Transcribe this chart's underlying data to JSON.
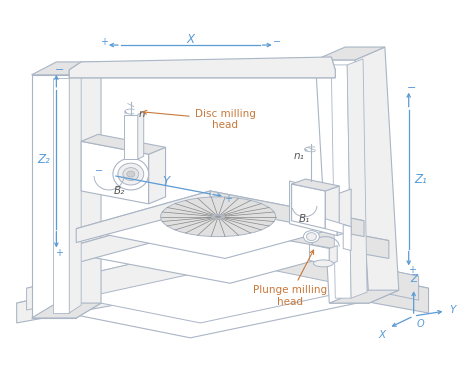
{
  "bg_color": "#ffffff",
  "line_color": "#aab5c5",
  "face_light": "#ffffff",
  "face_mid": "#f0f0f0",
  "face_dark": "#e4e4e4",
  "blue_color": "#5b9bd5",
  "orange_color": "#c8783a",
  "dark_color": "#555555",
  "labels": {
    "Z1": "Z₁",
    "Z2": "Z₂",
    "B1": "B₁",
    "B2": "B₂",
    "n1": "n₁",
    "n2": "n",
    "X": "X",
    "Y": "Y",
    "Z": "Z",
    "O": "O",
    "plunge": "Plunge milling\nhead",
    "disc": "Disc milling\nhead"
  }
}
